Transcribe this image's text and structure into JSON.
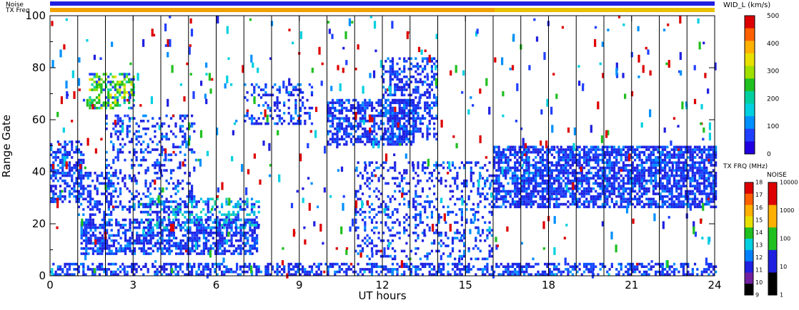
{
  "chart_data": {
    "type": "heatmap",
    "title": "",
    "xlabel": "UT hours",
    "ylabel": "Range Gate",
    "xlim": [
      0,
      24
    ],
    "ylim": [
      0,
      100
    ],
    "x_ticks": [
      "0",
      "3",
      "6",
      "9",
      "12",
      "15",
      "18",
      "21",
      "24"
    ],
    "y_ticks": [
      "0",
      "20",
      "40",
      "60",
      "80",
      "100"
    ],
    "vertical_scan_lines_hours": [
      1,
      2,
      3,
      4,
      5,
      6,
      7,
      8,
      9,
      10,
      11,
      12,
      13,
      14,
      15,
      16,
      17,
      18,
      19,
      20,
      21,
      22,
      23
    ],
    "top_bars": {
      "noise_label": "Noise",
      "txfreq_label": "TX Freq",
      "noise_color": "#2020e0",
      "txfreq_before_16_color": "#f0a000",
      "txfreq_after_16_color": "#e8c000",
      "txfreq_change_hour": 16
    },
    "scatter_regions": [
      {
        "name": "near-range band",
        "x0": 0.0,
        "x1": 24.0,
        "y0": 0,
        "y1": 5,
        "density": 0.5,
        "dominant": "blue"
      },
      {
        "name": "early band",
        "x0": 0.0,
        "x1": 1.2,
        "y0": 28,
        "y1": 52,
        "density": 0.55,
        "dominant": "blue"
      },
      {
        "name": "rising arc A",
        "x0": 1.0,
        "x1": 2.2,
        "y0": 22,
        "y1": 40,
        "density": 0.4,
        "dominant": "blue"
      },
      {
        "name": "green high cluster",
        "x0": 1.4,
        "x1": 3.0,
        "y0": 64,
        "y1": 78,
        "density": 0.55,
        "dominant": "green"
      },
      {
        "name": "rising arc B",
        "x0": 2.0,
        "x1": 5.2,
        "y0": 24,
        "y1": 62,
        "density": 0.25,
        "dominant": "blue"
      },
      {
        "name": "lower dense band",
        "x0": 1.1,
        "x1": 7.5,
        "y0": 8,
        "y1": 22,
        "density": 0.6,
        "dominant": "blue"
      },
      {
        "name": "cyan mixed band",
        "x0": 3.5,
        "x1": 7.5,
        "y0": 18,
        "y1": 30,
        "density": 0.45,
        "dominant": "cyan"
      },
      {
        "name": "mid cluster",
        "x0": 7.0,
        "x1": 9.5,
        "y0": 58,
        "y1": 74,
        "density": 0.3,
        "dominant": "blue"
      },
      {
        "name": "midday cluster",
        "x0": 10.0,
        "x1": 13.2,
        "y0": 50,
        "y1": 68,
        "density": 0.6,
        "dominant": "blue"
      },
      {
        "name": "rising arc C",
        "x0": 12.0,
        "x1": 14.0,
        "y0": 52,
        "y1": 84,
        "density": 0.4,
        "dominant": "blue"
      },
      {
        "name": "afternoon band",
        "x0": 11.0,
        "x1": 16.0,
        "y0": 6,
        "y1": 44,
        "density": 0.25,
        "dominant": "blue"
      },
      {
        "name": "evening band",
        "x0": 16.0,
        "x1": 24.0,
        "y0": 26,
        "y1": 50,
        "density": 0.7,
        "dominant": "blue"
      }
    ]
  },
  "width_colorbar": {
    "title": "WID_L (km/s)",
    "ticks": [
      "500",
      "400",
      "300",
      "200",
      "100",
      "0"
    ],
    "colors": [
      "#dd0000",
      "#ff6000",
      "#ffb000",
      "#e8e000",
      "#a0e000",
      "#20c020",
      "#00d0a0",
      "#00d0e0",
      "#0090ff",
      "#2040ff",
      "#2000e0"
    ]
  },
  "txfreq_colorbar": {
    "title": "TX FRQ (MHz)",
    "ticks": [
      "18",
      "17",
      "16",
      "15",
      "14",
      "13",
      "12",
      "11",
      "10",
      "9"
    ],
    "colors": [
      "#dd0000",
      "#ff6000",
      "#ffb000",
      "#e8e000",
      "#20c020",
      "#00d0e0",
      "#0080ff",
      "#2020e0",
      "#7020a0",
      "#000000"
    ]
  },
  "noise_colorbar": {
    "title": "NOISE",
    "ticks": [
      "10000",
      "1000",
      "100",
      "10",
      "1"
    ],
    "colors": [
      "#dd0000",
      "#ffb000",
      "#20c020",
      "#2020e0",
      "#000000"
    ]
  }
}
